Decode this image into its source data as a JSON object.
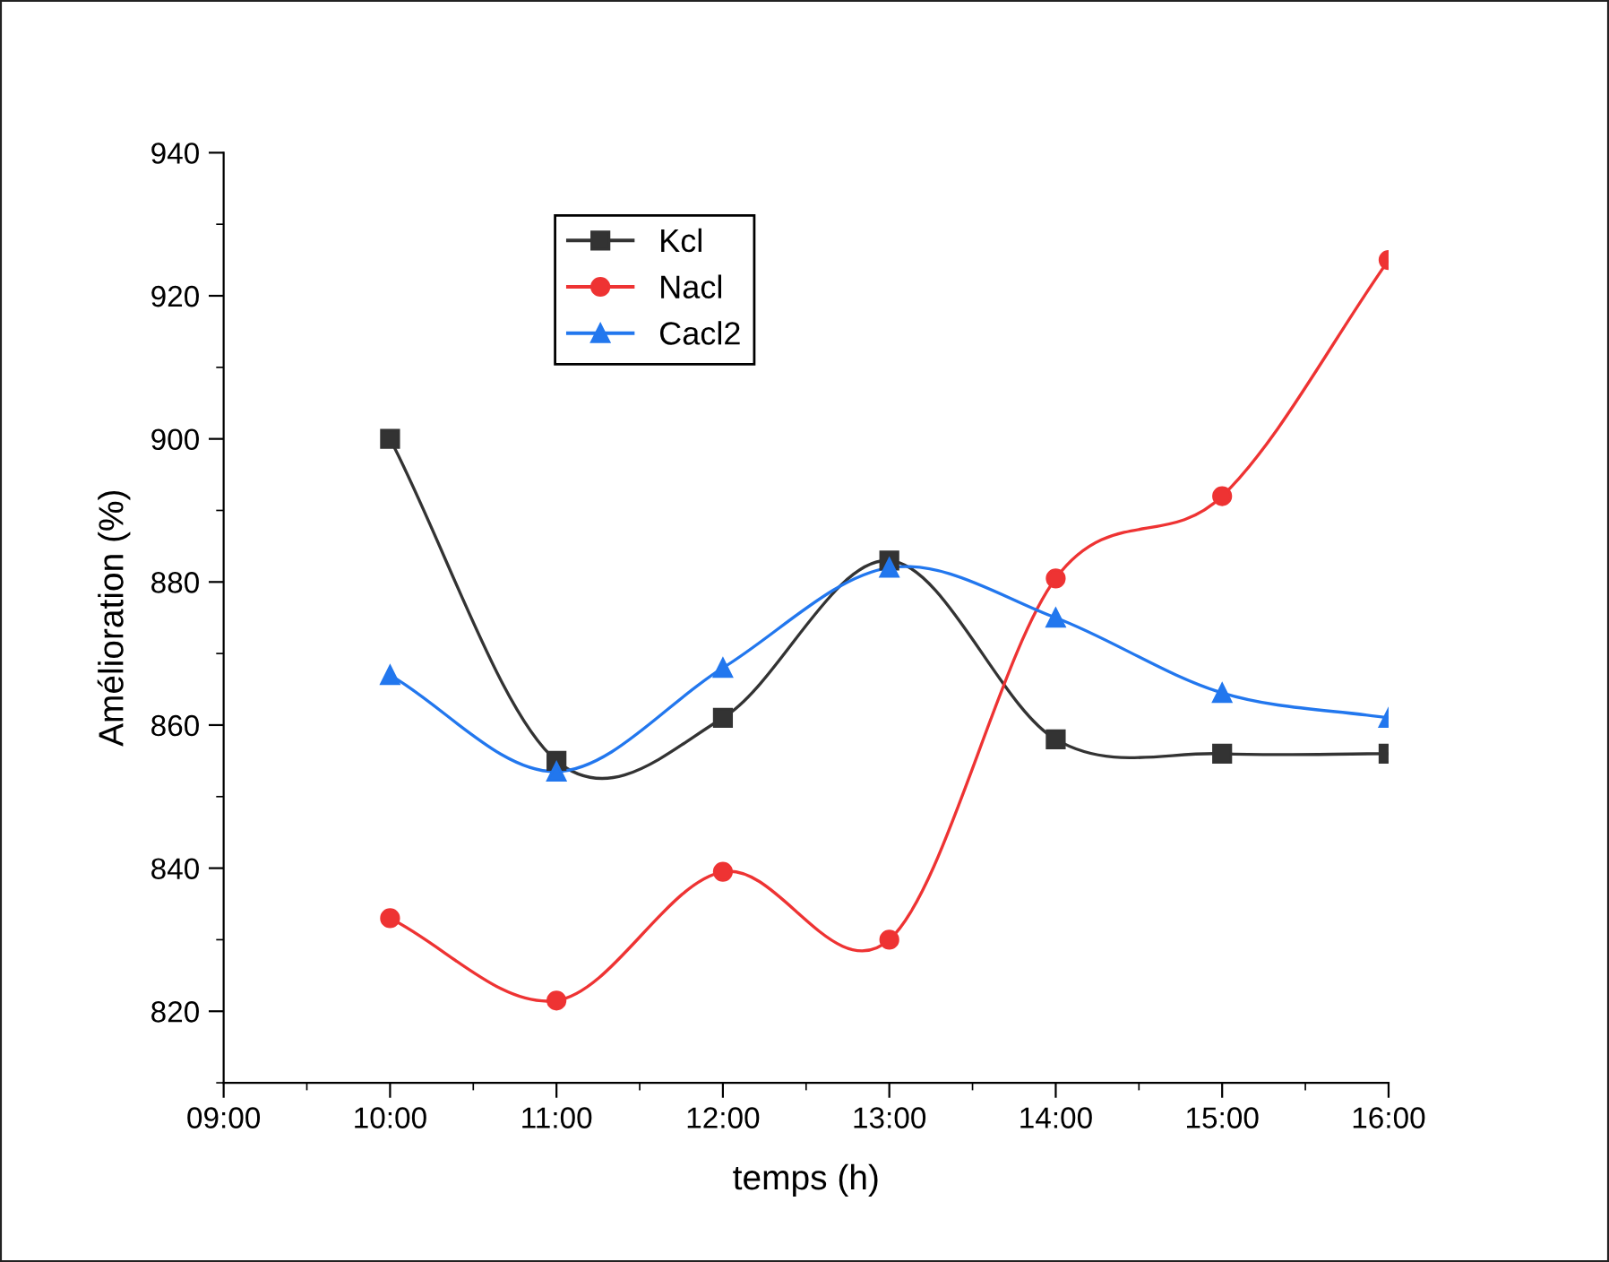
{
  "chart_data": {
    "type": "line",
    "xlabel": "temps (h)",
    "ylabel": "Amélioration (%)",
    "x": [
      10,
      11,
      12,
      13,
      14,
      15,
      16
    ],
    "series": [
      {
        "name": "Kcl",
        "color": "#333333",
        "marker": "square",
        "values": [
          900,
          855,
          861,
          883,
          858,
          856,
          856
        ]
      },
      {
        "name": "Nacl",
        "color": "#ee3333",
        "marker": "circle",
        "values": [
          833,
          821.5,
          839.5,
          830,
          880.5,
          892,
          925
        ]
      },
      {
        "name": "Cacl2",
        "color": "#2277ee",
        "marker": "triangle",
        "values": [
          867,
          853.5,
          868,
          882,
          875,
          864.5,
          861
        ]
      }
    ],
    "xlim": [
      9,
      16
    ],
    "xticks": [
      {
        "value": 9,
        "label": "09:00"
      },
      {
        "value": 10,
        "label": "10:00"
      },
      {
        "value": 11,
        "label": "11:00"
      },
      {
        "value": 12,
        "label": "12:00"
      },
      {
        "value": 13,
        "label": "13:00"
      },
      {
        "value": 14,
        "label": "14:00"
      },
      {
        "value": 15,
        "label": "15:00"
      },
      {
        "value": 16,
        "label": "16:00"
      }
    ],
    "ylim": [
      810,
      940
    ],
    "yticks": [
      820,
      840,
      860,
      880,
      900,
      920,
      940
    ],
    "grid": false,
    "legend": "top",
    "line_style": "solid"
  }
}
